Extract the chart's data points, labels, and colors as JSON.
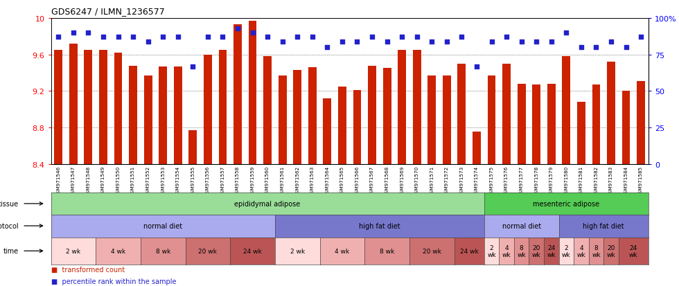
{
  "title": "GDS6247 / ILMN_1236577",
  "samples": [
    "GSM971546",
    "GSM971547",
    "GSM971548",
    "GSM971549",
    "GSM971550",
    "GSM971551",
    "GSM971552",
    "GSM971553",
    "GSM971554",
    "GSM971555",
    "GSM971556",
    "GSM971557",
    "GSM971558",
    "GSM971559",
    "GSM971560",
    "GSM971561",
    "GSM971562",
    "GSM971563",
    "GSM971564",
    "GSM971565",
    "GSM971566",
    "GSM971567",
    "GSM971568",
    "GSM971569",
    "GSM971570",
    "GSM971571",
    "GSM971572",
    "GSM971573",
    "GSM971574",
    "GSM971575",
    "GSM971576",
    "GSM971577",
    "GSM971578",
    "GSM971579",
    "GSM971580",
    "GSM971581",
    "GSM971582",
    "GSM971583",
    "GSM971584",
    "GSM971585"
  ],
  "bar_values": [
    9.65,
    9.72,
    9.65,
    9.65,
    9.62,
    9.48,
    9.37,
    9.47,
    9.47,
    8.77,
    9.6,
    9.65,
    9.93,
    9.97,
    9.58,
    9.37,
    9.43,
    9.46,
    9.12,
    9.25,
    9.21,
    9.48,
    9.45,
    9.65,
    9.65,
    9.37,
    9.37,
    9.5,
    8.76,
    9.37,
    9.5,
    9.28,
    9.27,
    9.28,
    9.58,
    9.08,
    9.27,
    9.52,
    9.2,
    9.31
  ],
  "percentile_values": [
    87,
    90,
    90,
    87,
    87,
    87,
    84,
    87,
    87,
    67,
    87,
    87,
    93,
    90,
    87,
    84,
    87,
    87,
    80,
    84,
    84,
    87,
    84,
    87,
    87,
    84,
    84,
    87,
    67,
    84,
    87,
    84,
    84,
    84,
    90,
    80,
    80,
    84,
    80,
    87
  ],
  "ylim_left": [
    8.4,
    10.0
  ],
  "ylim_right": [
    0,
    100
  ],
  "yticks_left": [
    8.4,
    8.8,
    9.2,
    9.6,
    10.0
  ],
  "ytick_labels_left": [
    "8.4",
    "8.8",
    "9.2",
    "9.6",
    "10"
  ],
  "yticks_right": [
    0,
    25,
    50,
    75,
    100
  ],
  "ytick_labels_right": [
    "0",
    "25",
    "50",
    "75",
    "100%"
  ],
  "bar_color": "#cc2200",
  "dot_color": "#2222cc",
  "tissue_row": {
    "label": "tissue",
    "segments": [
      {
        "text": "epididymal adipose",
        "start": 0,
        "end": 29,
        "color": "#99dd99"
      },
      {
        "text": "mesenteric adipose",
        "start": 29,
        "end": 40,
        "color": "#55cc55"
      }
    ]
  },
  "protocol_row": {
    "label": "protocol",
    "segments": [
      {
        "text": "normal diet",
        "start": 0,
        "end": 15,
        "color": "#aaaaee"
      },
      {
        "text": "high fat diet",
        "start": 15,
        "end": 29,
        "color": "#7777cc"
      },
      {
        "text": "normal diet",
        "start": 29,
        "end": 34,
        "color": "#aaaaee"
      },
      {
        "text": "high fat diet",
        "start": 34,
        "end": 40,
        "color": "#7777cc"
      }
    ]
  },
  "time_row": {
    "label": "time",
    "segments": [
      {
        "text": "2 wk",
        "start": 0,
        "end": 3,
        "color": "#ffdcdc"
      },
      {
        "text": "4 wk",
        "start": 3,
        "end": 6,
        "color": "#f0b0b0"
      },
      {
        "text": "8 wk",
        "start": 6,
        "end": 9,
        "color": "#e09090"
      },
      {
        "text": "20 wk",
        "start": 9,
        "end": 12,
        "color": "#cc7070"
      },
      {
        "text": "24 wk",
        "start": 12,
        "end": 15,
        "color": "#bb5555"
      },
      {
        "text": "2 wk",
        "start": 15,
        "end": 18,
        "color": "#ffdcdc"
      },
      {
        "text": "4 wk",
        "start": 18,
        "end": 21,
        "color": "#f0b0b0"
      },
      {
        "text": "8 wk",
        "start": 21,
        "end": 24,
        "color": "#e09090"
      },
      {
        "text": "20 wk",
        "start": 24,
        "end": 27,
        "color": "#cc7070"
      },
      {
        "text": "24 wk",
        "start": 27,
        "end": 29,
        "color": "#bb5555"
      },
      {
        "text": "2\nwk",
        "start": 29,
        "end": 30,
        "color": "#ffdcdc"
      },
      {
        "text": "4\nwk",
        "start": 30,
        "end": 31,
        "color": "#f0b0b0"
      },
      {
        "text": "8\nwk",
        "start": 31,
        "end": 32,
        "color": "#e09090"
      },
      {
        "text": "20\nwk",
        "start": 32,
        "end": 33,
        "color": "#cc7070"
      },
      {
        "text": "24\nwk",
        "start": 33,
        "end": 34,
        "color": "#bb5555"
      },
      {
        "text": "2\nwk",
        "start": 34,
        "end": 35,
        "color": "#ffdcdc"
      },
      {
        "text": "4\nwk",
        "start": 35,
        "end": 36,
        "color": "#f0b0b0"
      },
      {
        "text": "8\nwk",
        "start": 36,
        "end": 37,
        "color": "#e09090"
      },
      {
        "text": "20\nwk",
        "start": 37,
        "end": 38,
        "color": "#cc7070"
      },
      {
        "text": "24\nwk",
        "start": 38,
        "end": 40,
        "color": "#bb5555"
      }
    ]
  }
}
